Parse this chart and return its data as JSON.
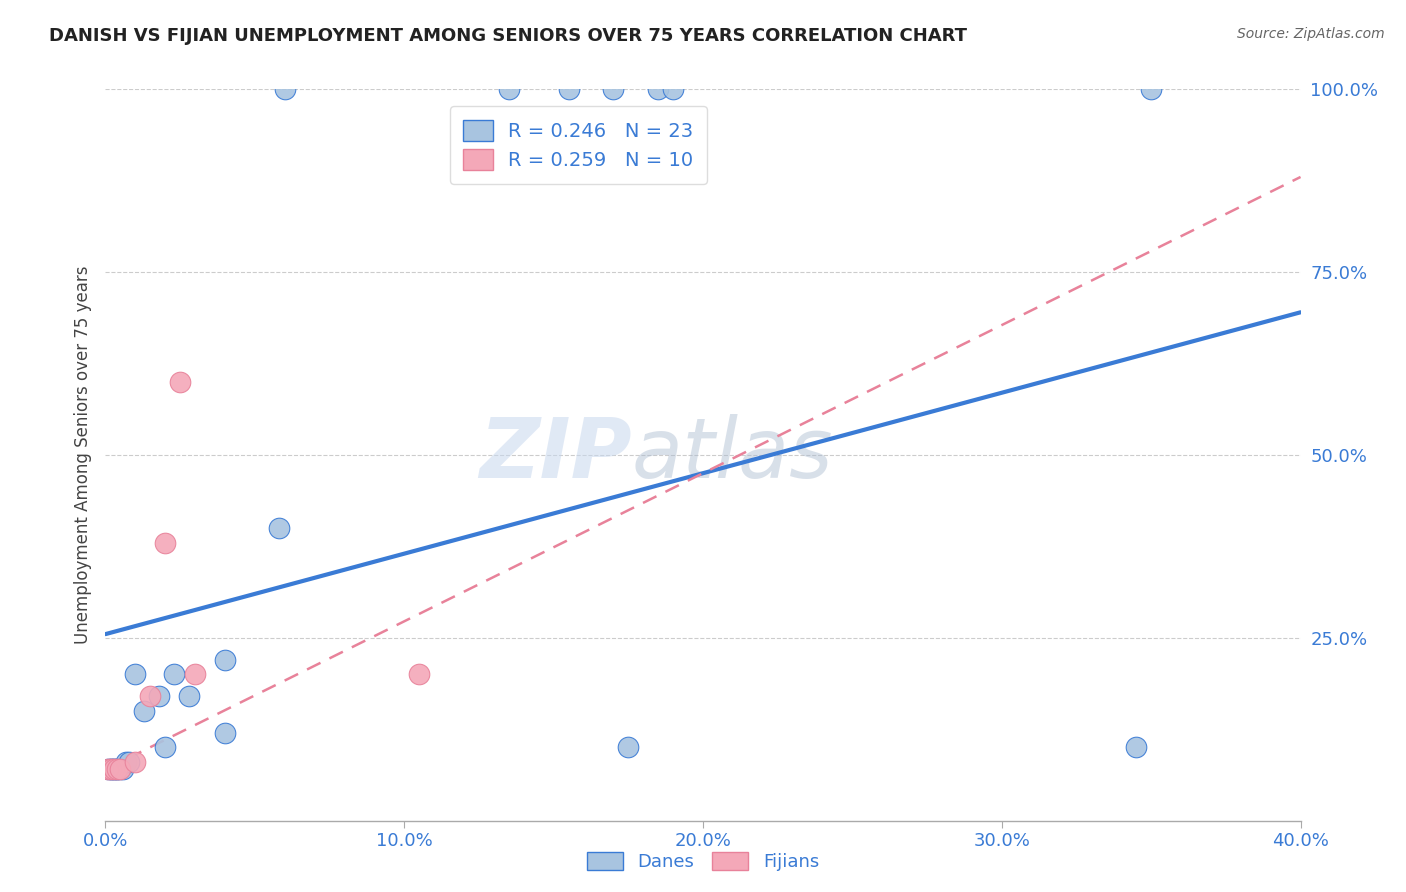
{
  "title": "DANISH VS FIJIAN UNEMPLOYMENT AMONG SENIORS OVER 75 YEARS CORRELATION CHART",
  "source": "Source: ZipAtlas.com",
  "ylabel": "Unemployment Among Seniors over 75 years",
  "xlabel": "",
  "xlim": [
    0.0,
    0.4
  ],
  "ylim": [
    0.0,
    1.0
  ],
  "xticks": [
    0.0,
    0.1,
    0.2,
    0.3,
    0.4
  ],
  "yticks": [
    0.25,
    0.5,
    0.75,
    1.0
  ],
  "xticklabels": [
    "0.0%",
    "10.0%",
    "20.0%",
    "30.0%",
    "40.0%"
  ],
  "yticklabels": [
    "25.0%",
    "50.0%",
    "75.0%",
    "100.0%"
  ],
  "danes_x": [
    0.001,
    0.002,
    0.002,
    0.003,
    0.003,
    0.004,
    0.004,
    0.005,
    0.006,
    0.007,
    0.008,
    0.01,
    0.013,
    0.018,
    0.02,
    0.023,
    0.028,
    0.04,
    0.04,
    0.058,
    0.175,
    0.345,
    0.35
  ],
  "danes_y": [
    0.07,
    0.07,
    0.07,
    0.07,
    0.07,
    0.07,
    0.07,
    0.07,
    0.07,
    0.08,
    0.08,
    0.2,
    0.15,
    0.17,
    0.1,
    0.2,
    0.17,
    0.22,
    0.12,
    0.4,
    0.1,
    0.1,
    1.0
  ],
  "danes_top_x": [
    0.06,
    0.135,
    0.155,
    0.17,
    0.185,
    0.19
  ],
  "danes_top_y": [
    1.0,
    1.0,
    1.0,
    1.0,
    1.0,
    1.0
  ],
  "fijians_x": [
    0.001,
    0.002,
    0.003,
    0.004,
    0.005,
    0.01,
    0.015,
    0.02,
    0.03,
    0.105
  ],
  "fijians_y": [
    0.07,
    0.07,
    0.07,
    0.07,
    0.07,
    0.08,
    0.17,
    0.38,
    0.2,
    0.2
  ],
  "fijians_outlier_x": [
    0.025
  ],
  "fijians_outlier_y": [
    0.6
  ],
  "danes_color": "#a8c4e0",
  "fijians_color": "#f4a8b8",
  "danes_line_color": "#3a7bd5",
  "fijians_line_color": "#e8829a",
  "danes_R": 0.246,
  "danes_N": 23,
  "fijians_R": 0.259,
  "fijians_N": 10,
  "danes_line_x0": 0.0,
  "danes_line_y0": 0.255,
  "danes_line_x1": 0.4,
  "danes_line_y1": 0.695,
  "fijians_line_x0": 0.0,
  "fijians_line_y0": 0.07,
  "fijians_line_x1": 0.4,
  "fijians_line_y1": 0.88,
  "watermark_part1": "ZIP",
  "watermark_part2": "atlas",
  "background_color": "#ffffff",
  "grid_color": "#cccccc"
}
